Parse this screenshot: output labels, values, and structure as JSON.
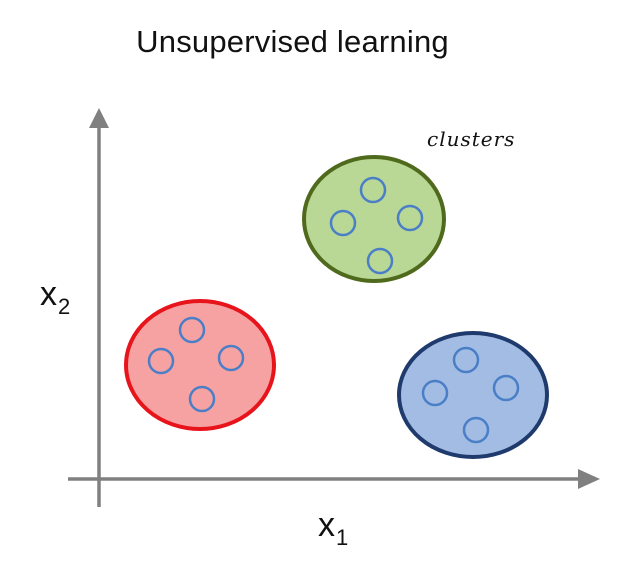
{
  "title": "Unsupervised learning",
  "annotation": "clusters",
  "axes": {
    "x": {
      "label": "x",
      "subscript": "1"
    },
    "y": {
      "label": "x",
      "subscript": "2"
    }
  },
  "colors": {
    "axis": "#808080",
    "point_stroke": "#4a7fc8",
    "clusters": [
      {
        "fill": "#b9d795",
        "stroke": "#4f6a1c"
      },
      {
        "fill": "#f7a2a2",
        "stroke": "#e8141c"
      },
      {
        "fill": "#a3bce3",
        "stroke": "#1f3b6d"
      }
    ]
  },
  "clusters": [
    {
      "color": "green",
      "points": 4
    },
    {
      "color": "red",
      "points": 4
    },
    {
      "color": "blue",
      "points": 4
    }
  ]
}
